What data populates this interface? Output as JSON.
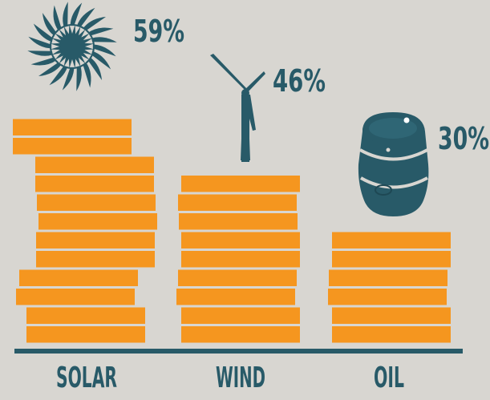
{
  "chart_data": {
    "type": "bar",
    "categories": [
      "SOLAR",
      "WIND",
      "OIL"
    ],
    "values": [
      59,
      46,
      30
    ],
    "value_labels": [
      "59%",
      "46%",
      "30%"
    ],
    "unit": "%",
    "icons": [
      "sun-icon",
      "wind-turbine-icon",
      "oil-barrel-icon"
    ],
    "title": "",
    "xlabel": "",
    "ylabel": "",
    "grid": false,
    "legend": "none"
  },
  "colors": {
    "background": "#d8d6d1",
    "bar": "#f5961f",
    "bar_edge": "#d8d6d1",
    "accent": "#285a68"
  }
}
